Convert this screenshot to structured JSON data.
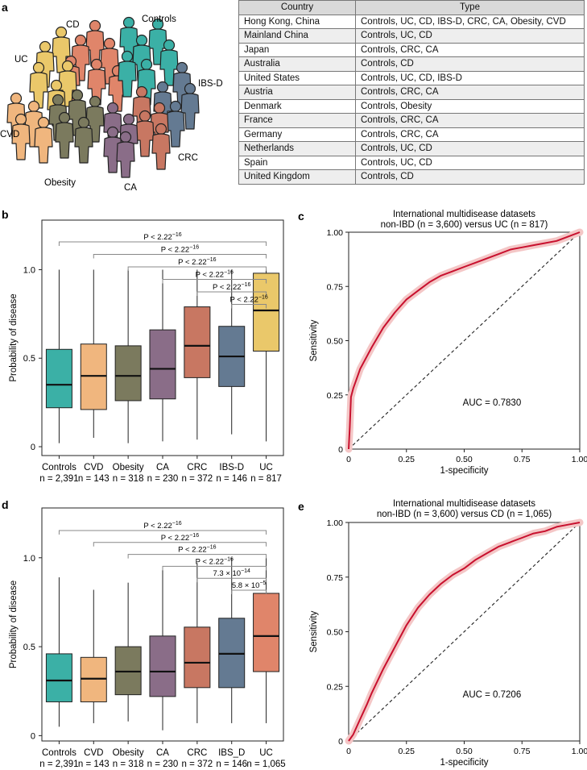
{
  "panel_labels": {
    "a": "a",
    "b": "b",
    "c": "c",
    "d": "d",
    "e": "e"
  },
  "illustration": {
    "groups": [
      "CD",
      "Controls",
      "UC",
      "IBS-D",
      "CVD",
      "CRC",
      "Obesity",
      "CA"
    ],
    "colors": {
      "Controls": "#3bb0a6",
      "CD": "#e0856a",
      "UC": "#eac86a",
      "IBS-D": "#647a92",
      "CVD": "#f0b67e",
      "CRC": "#c87762",
      "Obesity": "#7b7a5e",
      "CA": "#8a6d88"
    }
  },
  "country_table": {
    "headers": [
      "Country",
      "Type"
    ],
    "rows": [
      [
        "Hong Kong, China",
        "Controls, UC, CD, IBS-D, CRC, CA, Obesity, CVD"
      ],
      [
        "Mainland China",
        "Controls, UC, CD"
      ],
      [
        "Japan",
        "Controls, CRC, CA"
      ],
      [
        "Australia",
        "Controls, CD"
      ],
      [
        "United States",
        "Controls, UC, CD, IBS-D"
      ],
      [
        "Austria",
        "Controls, CRC, CA"
      ],
      [
        "Denmark",
        "Controls, Obesity"
      ],
      [
        "France",
        "Controls, CRC, CA"
      ],
      [
        "Germany",
        "Controls, CRC, CA"
      ],
      [
        "Netherlands",
        "Controls, UC, CD"
      ],
      [
        "Spain",
        "Controls, UC, CD"
      ],
      [
        "United Kingdom",
        "Controls, CD"
      ]
    ]
  },
  "chart_data": [
    {
      "id": "b",
      "type": "boxplot",
      "ylabel": "Probability of disease",
      "ylim": [
        -0.05,
        1.28
      ],
      "yticks": [
        0,
        0.5,
        1.0
      ],
      "ytick_labels": [
        "0",
        "0.5",
        "1.0"
      ],
      "categories": [
        "Controls",
        "CVD",
        "Obesity",
        "CA",
        "CRC",
        "IBS-D",
        "UC"
      ],
      "n_labels": [
        "n = 2,391",
        "n = 143",
        "n = 318",
        "n = 230",
        "n = 372",
        "n = 146",
        "n = 817"
      ],
      "colors": [
        "#3bb0a6",
        "#f0b67e",
        "#7b7a5e",
        "#8a6d88",
        "#c87762",
        "#647a92",
        "#eac86a"
      ],
      "boxes": [
        {
          "min": 0.02,
          "q1": 0.22,
          "median": 0.35,
          "q3": 0.55,
          "max": 1.0
        },
        {
          "min": 0.05,
          "q1": 0.21,
          "median": 0.4,
          "q3": 0.58,
          "max": 1.0
        },
        {
          "min": 0.02,
          "q1": 0.26,
          "median": 0.4,
          "q3": 0.57,
          "max": 1.0
        },
        {
          "min": 0.03,
          "q1": 0.27,
          "median": 0.44,
          "q3": 0.66,
          "max": 1.0
        },
        {
          "min": 0.04,
          "q1": 0.39,
          "median": 0.57,
          "q3": 0.79,
          "max": 1.0
        },
        {
          "min": 0.07,
          "q1": 0.34,
          "median": 0.51,
          "q3": 0.68,
          "max": 1.0
        },
        {
          "min": 0.03,
          "q1": 0.54,
          "median": 0.77,
          "q3": 0.98,
          "max": 1.0
        }
      ],
      "comparisons": [
        {
          "from": 0,
          "to": 6,
          "label": "P < 2.22",
          "sup": "−16"
        },
        {
          "from": 1,
          "to": 6,
          "label": "P < 2.22",
          "sup": "−16"
        },
        {
          "from": 2,
          "to": 6,
          "label": "P < 2.22",
          "sup": "−16"
        },
        {
          "from": 3,
          "to": 6,
          "label": "P < 2.22",
          "sup": "−16"
        },
        {
          "from": 4,
          "to": 6,
          "label": "P < 2.22",
          "sup": "−16"
        },
        {
          "from": 5,
          "to": 6,
          "label": "P < 2.22",
          "sup": "−16"
        }
      ]
    },
    {
      "id": "c",
      "type": "line",
      "title": "International multidisease datasets",
      "subtitle": "non-IBD (n = 3,600) versus UC (n = 817)",
      "xlabel": "1-specificity",
      "ylabel": "Sensitivity",
      "xlim": [
        0,
        1
      ],
      "ylim": [
        0,
        1
      ],
      "xticks": [
        0,
        0.25,
        0.5,
        0.75,
        1.0
      ],
      "xtick_labels": [
        "0",
        "0.25",
        "0.50",
        "0.75",
        "1.00"
      ],
      "yticks": [
        0,
        0.25,
        0.5,
        0.75,
        1.0
      ],
      "ytick_labels": [
        "0",
        "0.25",
        "0.50",
        "0.75",
        "1.00"
      ],
      "series": [
        {
          "name": "ROC",
          "x": [
            0,
            0.005,
            0.01,
            0.02,
            0.03,
            0.05,
            0.08,
            0.1,
            0.15,
            0.2,
            0.25,
            0.3,
            0.35,
            0.4,
            0.45,
            0.5,
            0.55,
            0.6,
            0.65,
            0.7,
            0.75,
            0.8,
            0.85,
            0.9,
            0.95,
            1.0
          ],
          "y": [
            0,
            0.1,
            0.24,
            0.28,
            0.31,
            0.37,
            0.43,
            0.47,
            0.56,
            0.63,
            0.69,
            0.73,
            0.77,
            0.8,
            0.82,
            0.84,
            0.86,
            0.88,
            0.9,
            0.92,
            0.93,
            0.94,
            0.95,
            0.96,
            0.98,
            1.0
          ]
        }
      ],
      "annotation": "AUC = 0.7830"
    },
    {
      "id": "d",
      "type": "boxplot",
      "ylabel": "Probability of disease",
      "ylim": [
        -0.03,
        1.28
      ],
      "yticks": [
        0,
        0.5,
        1.0
      ],
      "ytick_labels": [
        "0",
        "0.5",
        "1.0"
      ],
      "categories": [
        "Controls",
        "CVD",
        "Obesity",
        "CA",
        "CRC",
        "IBS_D",
        "UC"
      ],
      "n_labels": [
        "n = 2,391",
        "n = 143",
        "n = 318",
        "n = 230",
        "n = 372",
        "n = 146",
        "n = 1,065"
      ],
      "colors": [
        "#3bb0a6",
        "#f0b67e",
        "#7b7a5e",
        "#8a6d88",
        "#c87762",
        "#647a92",
        "#e0856a"
      ],
      "boxes": [
        {
          "min": 0.05,
          "q1": 0.19,
          "median": 0.31,
          "q3": 0.46,
          "max": 0.89
        },
        {
          "min": 0.07,
          "q1": 0.19,
          "median": 0.32,
          "q3": 0.44,
          "max": 0.82
        },
        {
          "min": 0.08,
          "q1": 0.23,
          "median": 0.36,
          "q3": 0.5,
          "max": 0.86
        },
        {
          "min": 0.03,
          "q1": 0.22,
          "median": 0.36,
          "q3": 0.56,
          "max": 0.95
        },
        {
          "min": 0.07,
          "q1": 0.27,
          "median": 0.41,
          "q3": 0.61,
          "max": 0.97
        },
        {
          "min": 0.07,
          "q1": 0.27,
          "median": 0.46,
          "q3": 0.66,
          "max": 1.0
        },
        {
          "min": 0.07,
          "q1": 0.36,
          "median": 0.56,
          "q3": 0.8,
          "max": 1.0
        }
      ],
      "comparisons": [
        {
          "from": 0,
          "to": 6,
          "label": "P < 2.22",
          "sup": "−16"
        },
        {
          "from": 1,
          "to": 6,
          "label": "P < 2.22",
          "sup": "−16"
        },
        {
          "from": 2,
          "to": 6,
          "label": "P < 2.22",
          "sup": "−16"
        },
        {
          "from": 3,
          "to": 6,
          "label": "P < 2.22",
          "sup": "−16"
        },
        {
          "from": 4,
          "to": 6,
          "label": "7.3 × 10",
          "sup": "−14"
        },
        {
          "from": 5,
          "to": 6,
          "label": "5.8 × 10",
          "sup": "−5"
        }
      ]
    },
    {
      "id": "e",
      "type": "line",
      "title": "International multidisease datasets",
      "subtitle": "non-IBD (n = 3,600) versus CD (n = 1,065)",
      "xlabel": "1-specificity",
      "ylabel": "Sensitivity",
      "xlim": [
        0,
        1
      ],
      "ylim": [
        0,
        1
      ],
      "xticks": [
        0,
        0.25,
        0.5,
        0.75,
        1.0
      ],
      "xtick_labels": [
        "0",
        "0.25",
        "0.50",
        "0.75",
        "1.00"
      ],
      "yticks": [
        0,
        0.25,
        0.5,
        0.75,
        1.0
      ],
      "ytick_labels": [
        "0",
        "0.25",
        "0.50",
        "0.75",
        "1.00"
      ],
      "series": [
        {
          "name": "ROC",
          "x": [
            0,
            0.02,
            0.05,
            0.08,
            0.1,
            0.15,
            0.2,
            0.25,
            0.3,
            0.35,
            0.4,
            0.45,
            0.5,
            0.55,
            0.6,
            0.65,
            0.7,
            0.75,
            0.8,
            0.85,
            0.9,
            0.95,
            1.0
          ],
          "y": [
            0,
            0.03,
            0.1,
            0.17,
            0.22,
            0.33,
            0.43,
            0.53,
            0.61,
            0.67,
            0.72,
            0.76,
            0.79,
            0.83,
            0.86,
            0.89,
            0.91,
            0.93,
            0.95,
            0.96,
            0.98,
            0.99,
            1.0
          ]
        }
      ],
      "annotation": "AUC = 0.7206"
    }
  ]
}
